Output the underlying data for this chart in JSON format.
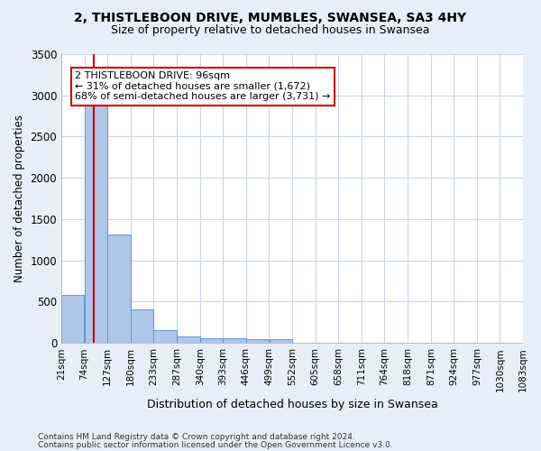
{
  "title1": "2, THISTLEBOON DRIVE, MUMBLES, SWANSEA, SA3 4HY",
  "title2": "Size of property relative to detached houses in Swansea",
  "xlabel": "Distribution of detached houses by size in Swansea",
  "ylabel": "Number of detached properties",
  "annotation_line1": "2 THISTLEBOON DRIVE: 96sqm",
  "annotation_line2": "← 31% of detached houses are smaller (1,672)",
  "annotation_line3": "68% of semi-detached houses are larger (3,731) →",
  "footer1": "Contains HM Land Registry data © Crown copyright and database right 2024.",
  "footer2": "Contains public sector information licensed under the Open Government Licence v3.0.",
  "bar_color": "#aec6e8",
  "bar_edge_color": "#5b9bd5",
  "bar_left_edges": [
    21,
    74,
    127,
    180,
    233,
    287,
    340,
    393,
    446,
    499,
    552,
    605,
    658,
    711,
    764,
    818,
    871,
    924,
    977,
    1030
  ],
  "bar_heights": [
    580,
    2910,
    1310,
    410,
    155,
    80,
    60,
    60,
    50,
    45,
    0,
    0,
    0,
    0,
    0,
    0,
    0,
    0,
    0,
    0
  ],
  "bin_width": 53,
  "property_size": 96,
  "vline_color": "#cc0000",
  "ylim": [
    0,
    3500
  ],
  "yticks": [
    0,
    500,
    1000,
    1500,
    2000,
    2500,
    3000,
    3500
  ],
  "tick_labels": [
    "21sqm",
    "74sqm",
    "127sqm",
    "180sqm",
    "233sqm",
    "287sqm",
    "340sqm",
    "393sqm",
    "446sqm",
    "499sqm",
    "552sqm",
    "605sqm",
    "658sqm",
    "711sqm",
    "764sqm",
    "818sqm",
    "871sqm",
    "924sqm",
    "977sqm",
    "1030sqm",
    "1083sqm"
  ],
  "fig_background_color": "#e8eef7",
  "plot_background_color": "#ffffff",
  "grid_color": "#c8d4e8",
  "annotation_box_color": "#ffffff",
  "annotation_box_edge": "#cc0000",
  "title1_fontsize": 10,
  "title2_fontsize": 9,
  "xlabel_fontsize": 9,
  "ylabel_fontsize": 8.5,
  "tick_fontsize": 7.5,
  "ytick_fontsize": 8.5,
  "footer_fontsize": 6.5,
  "annot_fontsize": 8
}
